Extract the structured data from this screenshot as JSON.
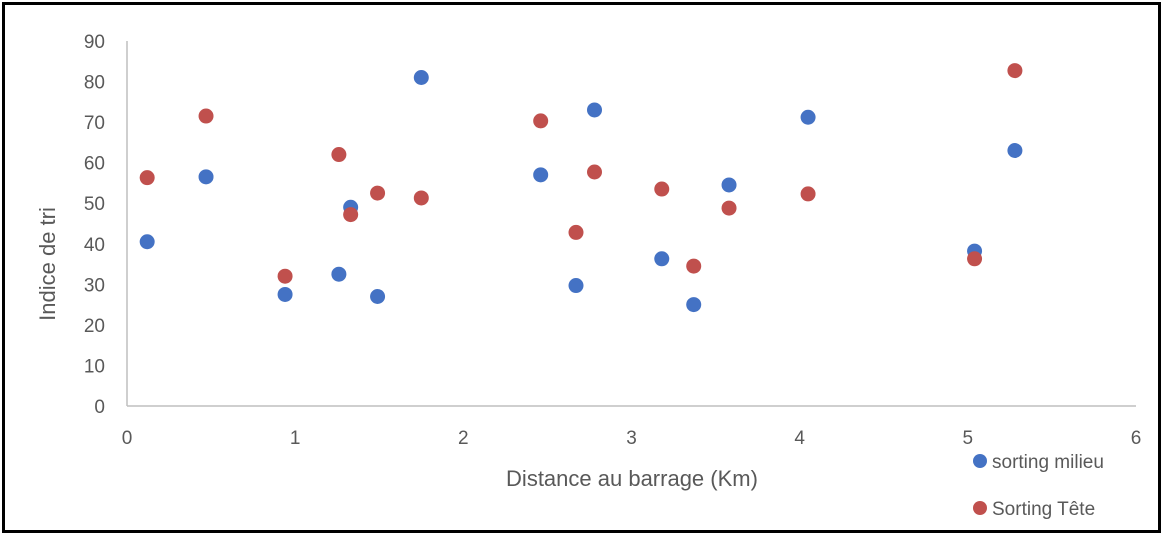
{
  "chart_data": {
    "type": "scatter",
    "xlabel": "Distance au barrage (Km)",
    "ylabel": "Indice de tri",
    "xlim": [
      0,
      6
    ],
    "ylim": [
      0,
      90
    ],
    "x_ticks": [
      "0",
      "1",
      "2",
      "3",
      "4",
      "5",
      "6"
    ],
    "y_ticks": [
      "0",
      "10",
      "20",
      "30",
      "40",
      "50",
      "60",
      "70",
      "80",
      "90"
    ],
    "grid": false,
    "legend_position": "bottom-right",
    "series": [
      {
        "name": "sorting milieu",
        "color": "#4472C4",
        "points": [
          {
            "x": 0.12,
            "y": 40.5
          },
          {
            "x": 0.47,
            "y": 56.5
          },
          {
            "x": 0.94,
            "y": 27.5
          },
          {
            "x": 1.26,
            "y": 32.5
          },
          {
            "x": 1.33,
            "y": 49
          },
          {
            "x": 1.49,
            "y": 27
          },
          {
            "x": 1.75,
            "y": 81
          },
          {
            "x": 2.46,
            "y": 57
          },
          {
            "x": 2.67,
            "y": 29.7
          },
          {
            "x": 2.78,
            "y": 73
          },
          {
            "x": 3.18,
            "y": 36.3
          },
          {
            "x": 3.37,
            "y": 25
          },
          {
            "x": 3.58,
            "y": 54.5
          },
          {
            "x": 4.05,
            "y": 71.2
          },
          {
            "x": 5.04,
            "y": 38.2
          },
          {
            "x": 5.28,
            "y": 63
          }
        ]
      },
      {
        "name": "Sorting Tête",
        "color": "#C0504D",
        "points": [
          {
            "x": 0.12,
            "y": 56.3
          },
          {
            "x": 0.47,
            "y": 71.5
          },
          {
            "x": 0.94,
            "y": 32
          },
          {
            "x": 1.26,
            "y": 62
          },
          {
            "x": 1.33,
            "y": 47.2
          },
          {
            "x": 1.49,
            "y": 52.5
          },
          {
            "x": 1.75,
            "y": 51.3
          },
          {
            "x": 2.46,
            "y": 70.3
          },
          {
            "x": 2.67,
            "y": 42.8
          },
          {
            "x": 2.78,
            "y": 57.7
          },
          {
            "x": 3.18,
            "y": 53.5
          },
          {
            "x": 3.37,
            "y": 34.5
          },
          {
            "x": 3.58,
            "y": 48.8
          },
          {
            "x": 4.05,
            "y": 52.3
          },
          {
            "x": 5.04,
            "y": 36.3
          },
          {
            "x": 5.28,
            "y": 82.7
          }
        ]
      }
    ]
  }
}
